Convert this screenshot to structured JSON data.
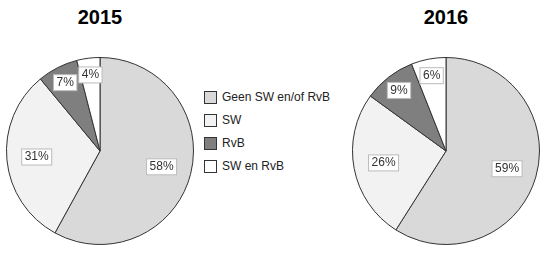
{
  "chart_data": [
    {
      "type": "pie",
      "title": "2015",
      "categories": [
        "Geen SW en/of RvB",
        "SW",
        "RvB",
        "SW en RvB"
      ],
      "values": [
        58,
        31,
        7,
        4
      ],
      "value_labels": [
        "58%",
        "31%",
        "7%",
        "4%"
      ],
      "colors": [
        "#d9d9d9",
        "#f2f2f2",
        "#7f7f7f",
        "#ffffff"
      ],
      "data_labels": true,
      "legend": "right"
    },
    {
      "type": "pie",
      "title": "2016",
      "categories": [
        "Geen SW en/of RvB",
        "SW",
        "RvB",
        "SW en RvB"
      ],
      "values": [
        59,
        26,
        9,
        6
      ],
      "value_labels": [
        "59%",
        "26%",
        "9%",
        "6%"
      ],
      "colors": [
        "#d9d9d9",
        "#f2f2f2",
        "#7f7f7f",
        "#ffffff"
      ],
      "data_labels": true,
      "legend": false
    }
  ]
}
